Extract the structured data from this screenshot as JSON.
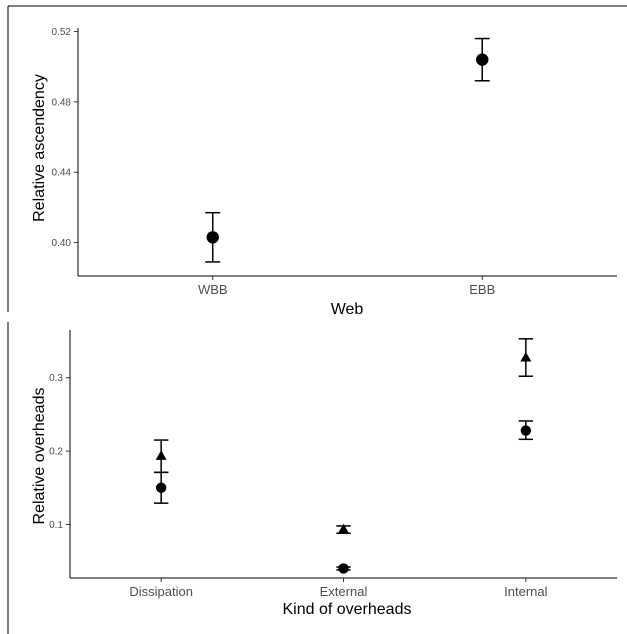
{
  "chart_data": [
    {
      "type": "scatter",
      "title": "",
      "xlabel": "Web",
      "ylabel": "Relative ascendency",
      "categories": [
        "WBB",
        "EBB"
      ],
      "yticks": [
        "0.40",
        "0.44",
        "0.48",
        "0.52"
      ],
      "ytick_values": [
        0.4,
        0.44,
        0.48,
        0.52
      ],
      "ylim": [
        0.381,
        0.522
      ],
      "grid": false,
      "series": [
        {
          "marker": "circle",
          "points": [
            {
              "x": "WBB",
              "y": 0.403,
              "ymin": 0.389,
              "ymax": 0.417
            },
            {
              "x": "EBB",
              "y": 0.504,
              "ymin": 0.492,
              "ymax": 0.516
            }
          ]
        }
      ]
    },
    {
      "type": "scatter",
      "title": "",
      "xlabel": "Kind of overheads",
      "ylabel": "Relative overheads",
      "categories": [
        "Dissipation",
        "External",
        "Internal"
      ],
      "yticks": [
        "0.1",
        "0.2",
        "0.3"
      ],
      "ytick_values": [
        0.1,
        0.2,
        0.3
      ],
      "ylim": [
        0.027,
        0.365
      ],
      "grid": false,
      "series": [
        {
          "marker": "circle",
          "points": [
            {
              "x": "Dissipation",
              "y": 0.15,
              "ymin": 0.129,
              "ymax": 0.171
            },
            {
              "x": "External",
              "y": 0.04,
              "ymin": 0.038,
              "ymax": 0.042
            },
            {
              "x": "Internal",
              "y": 0.228,
              "ymin": 0.216,
              "ymax": 0.241
            }
          ]
        },
        {
          "marker": "triangle",
          "points": [
            {
              "x": "Dissipation",
              "y": 0.193,
              "ymin": 0.171,
              "ymax": 0.215
            },
            {
              "x": "External",
              "y": 0.093,
              "ymin": 0.088,
              "ymax": 0.098
            },
            {
              "x": "Internal",
              "y": 0.327,
              "ymin": 0.302,
              "ymax": 0.353
            }
          ]
        }
      ]
    }
  ]
}
